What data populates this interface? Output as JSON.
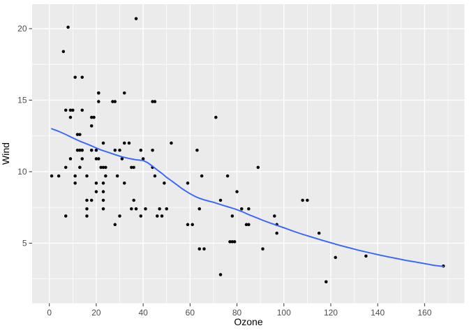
{
  "chart_data": {
    "type": "scatter",
    "title": "",
    "xlabel": "Ozone",
    "ylabel": "Wind",
    "grid": true,
    "legend": "none",
    "xlim": [
      -7.35,
      177.0
    ],
    "ylim": [
      0.8,
      21.71
    ],
    "x_major_ticks": [
      0,
      20,
      40,
      60,
      80,
      100,
      120,
      140,
      160
    ],
    "x_minor_ticks": [
      10,
      30,
      50,
      70,
      90,
      110,
      130,
      150,
      170
    ],
    "y_major_ticks": [
      5,
      10,
      15,
      20
    ],
    "y_minor_ticks": [
      2.5,
      7.5,
      12.5,
      17.5
    ],
    "series": [
      {
        "name": "observations",
        "geom": "point",
        "points": [
          [
            41,
            7.4
          ],
          [
            36,
            8.0
          ],
          [
            12,
            12.6
          ],
          [
            18,
            11.5
          ],
          [
            28,
            14.9
          ],
          [
            23,
            8.6
          ],
          [
            19,
            13.8
          ],
          [
            8,
            20.1
          ],
          [
            7,
            6.9
          ],
          [
            16,
            9.7
          ],
          [
            11,
            9.2
          ],
          [
            14,
            10.9
          ],
          [
            18,
            13.2
          ],
          [
            14,
            11.5
          ],
          [
            34,
            12.0
          ],
          [
            6,
            18.4
          ],
          [
            30,
            11.5
          ],
          [
            11,
            9.7
          ],
          [
            1,
            9.7
          ],
          [
            11,
            16.6
          ],
          [
            4,
            9.7
          ],
          [
            32,
            12.0
          ],
          [
            23,
            12.0
          ],
          [
            45,
            14.9
          ],
          [
            115,
            5.7
          ],
          [
            37,
            7.4
          ],
          [
            29,
            9.7
          ],
          [
            71,
            13.8
          ],
          [
            39,
            11.5
          ],
          [
            23,
            8.0
          ],
          [
            21,
            14.9
          ],
          [
            37,
            20.7
          ],
          [
            20,
            9.2
          ],
          [
            12,
            11.5
          ],
          [
            13,
            10.3
          ],
          [
            135,
            4.1
          ],
          [
            49,
            9.2
          ],
          [
            32,
            9.2
          ],
          [
            64,
            4.6
          ],
          [
            40,
            10.9
          ],
          [
            77,
            5.1
          ],
          [
            97,
            6.3
          ],
          [
            97,
            5.7
          ],
          [
            85,
            7.4
          ],
          [
            10,
            14.3
          ],
          [
            27,
            14.9
          ],
          [
            7,
            14.3
          ],
          [
            48,
            6.9
          ],
          [
            35,
            10.3
          ],
          [
            61,
            6.3
          ],
          [
            79,
            5.1
          ],
          [
            63,
            11.5
          ],
          [
            16,
            6.9
          ],
          [
            80,
            8.6
          ],
          [
            108,
            8.0
          ],
          [
            20,
            8.6
          ],
          [
            52,
            12.0
          ],
          [
            82,
            7.4
          ],
          [
            50,
            7.4
          ],
          [
            64,
            7.4
          ],
          [
            59,
            9.2
          ],
          [
            39,
            6.9
          ],
          [
            9,
            13.8
          ],
          [
            16,
            7.4
          ],
          [
            78,
            6.9
          ],
          [
            35,
            7.4
          ],
          [
            66,
            4.6
          ],
          [
            122,
            4.0
          ],
          [
            89,
            10.3
          ],
          [
            110,
            8.0
          ],
          [
            44,
            11.5
          ],
          [
            28,
            11.5
          ],
          [
            65,
            9.7
          ],
          [
            22,
            10.3
          ],
          [
            59,
            6.3
          ],
          [
            23,
            7.4
          ],
          [
            31,
            10.9
          ],
          [
            44,
            10.3
          ],
          [
            21,
            15.5
          ],
          [
            9,
            14.3
          ],
          [
            45,
            9.7
          ],
          [
            168,
            3.4
          ],
          [
            73,
            8.0
          ],
          [
            76,
            9.7
          ],
          [
            118,
            2.3
          ],
          [
            84,
            6.3
          ],
          [
            85,
            6.3
          ],
          [
            96,
            6.9
          ],
          [
            78,
            5.1
          ],
          [
            73,
            2.8
          ],
          [
            91,
            4.6
          ],
          [
            47,
            7.4
          ],
          [
            32,
            15.5
          ],
          [
            20,
            10.9
          ],
          [
            23,
            10.3
          ],
          [
            21,
            10.9
          ],
          [
            24,
            9.7
          ],
          [
            44,
            14.9
          ],
          [
            21,
            15.5
          ],
          [
            28,
            6.3
          ],
          [
            9,
            10.9
          ],
          [
            13,
            11.5
          ],
          [
            46,
            6.9
          ],
          [
            18,
            13.8
          ],
          [
            13,
            10.3
          ],
          [
            24,
            10.3
          ],
          [
            16,
            8.0
          ],
          [
            13,
            12.6
          ],
          [
            23,
            9.2
          ],
          [
            36,
            10.3
          ],
          [
            7,
            10.3
          ],
          [
            14,
            16.6
          ],
          [
            30,
            6.9
          ],
          [
            14,
            14.3
          ],
          [
            18,
            8.0
          ],
          [
            20,
            11.5
          ]
        ]
      },
      {
        "name": "loess-smooth",
        "geom": "line",
        "points": [
          [
            1,
            13.0
          ],
          [
            4,
            12.82
          ],
          [
            7,
            12.6
          ],
          [
            10,
            12.36
          ],
          [
            13,
            12.13
          ],
          [
            16,
            11.94
          ],
          [
            19,
            11.73
          ],
          [
            22,
            11.52
          ],
          [
            25,
            11.36
          ],
          [
            28,
            11.19
          ],
          [
            31,
            11.04
          ],
          [
            34,
            10.92
          ],
          [
            37,
            10.83
          ],
          [
            40,
            10.78
          ],
          [
            42,
            10.62
          ],
          [
            44,
            10.38
          ],
          [
            46,
            10.12
          ],
          [
            48,
            9.88
          ],
          [
            50,
            9.6
          ],
          [
            52,
            9.37
          ],
          [
            54,
            9.13
          ],
          [
            56,
            8.88
          ],
          [
            58,
            8.66
          ],
          [
            60,
            8.46
          ],
          [
            62,
            8.28
          ],
          [
            64,
            8.14
          ],
          [
            66,
            8.03
          ],
          [
            68,
            7.94
          ],
          [
            70,
            7.86
          ],
          [
            73,
            7.7
          ],
          [
            76,
            7.55
          ],
          [
            79,
            7.4
          ],
          [
            82,
            7.22
          ],
          [
            85,
            7.0
          ],
          [
            88,
            6.8
          ],
          [
            91,
            6.6
          ],
          [
            94,
            6.42
          ],
          [
            97,
            6.25
          ],
          [
            100,
            6.08
          ],
          [
            104,
            5.84
          ],
          [
            108,
            5.62
          ],
          [
            112,
            5.42
          ],
          [
            116,
            5.22
          ],
          [
            120,
            5.03
          ],
          [
            124,
            4.84
          ],
          [
            128,
            4.67
          ],
          [
            132,
            4.5
          ],
          [
            136,
            4.35
          ],
          [
            140,
            4.2
          ],
          [
            144,
            4.06
          ],
          [
            148,
            3.93
          ],
          [
            152,
            3.8
          ],
          [
            156,
            3.69
          ],
          [
            160,
            3.57
          ],
          [
            164,
            3.45
          ],
          [
            168,
            3.37
          ]
        ]
      }
    ],
    "style": {
      "outer_bg": "#FFFFFF",
      "panel_bg": "#EBEBEB",
      "grid_major_color": "#FFFFFF",
      "grid_minor_color": "#FFFFFF",
      "point_color": "#000000",
      "point_radius": 2.25,
      "smooth_color": "#3366FF",
      "smooth_width": 1.9,
      "tick_mark_color": "#333333",
      "tick_label_color": "#4D4D4D",
      "tick_label_size": 12,
      "axis_title_color": "#000000",
      "axis_title_size": 14
    }
  }
}
